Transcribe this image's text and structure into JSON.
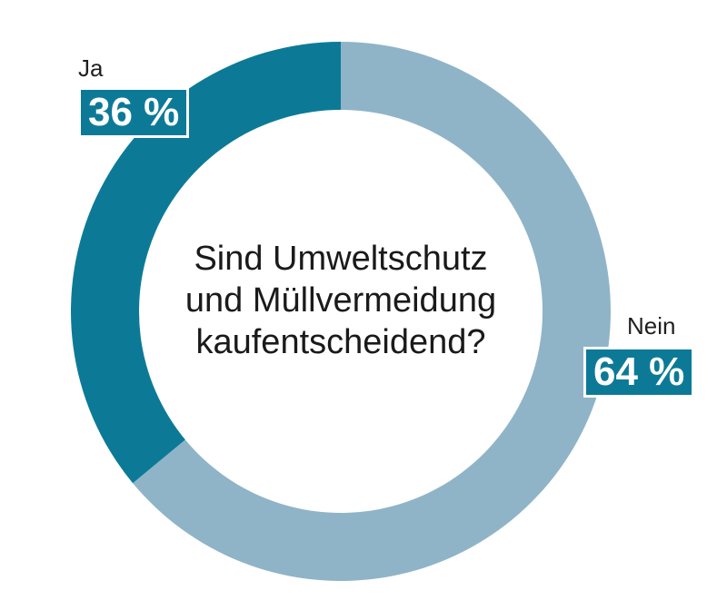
{
  "chart_data": {
    "type": "pie",
    "variant": "donut",
    "title": "Sind Umweltschutz und Müllvermeidung kaufentscheidend?",
    "title_lines": [
      "Sind Umweltschutz",
      "und Müllvermeidung",
      "kaufentscheidend?"
    ],
    "categories": [
      "Ja",
      "Nein"
    ],
    "values": [
      36,
      64
    ],
    "value_labels": [
      "36 %",
      "64 %"
    ],
    "unit": "%",
    "colors": [
      "#0c7a97",
      "#8fb4c8"
    ]
  }
}
